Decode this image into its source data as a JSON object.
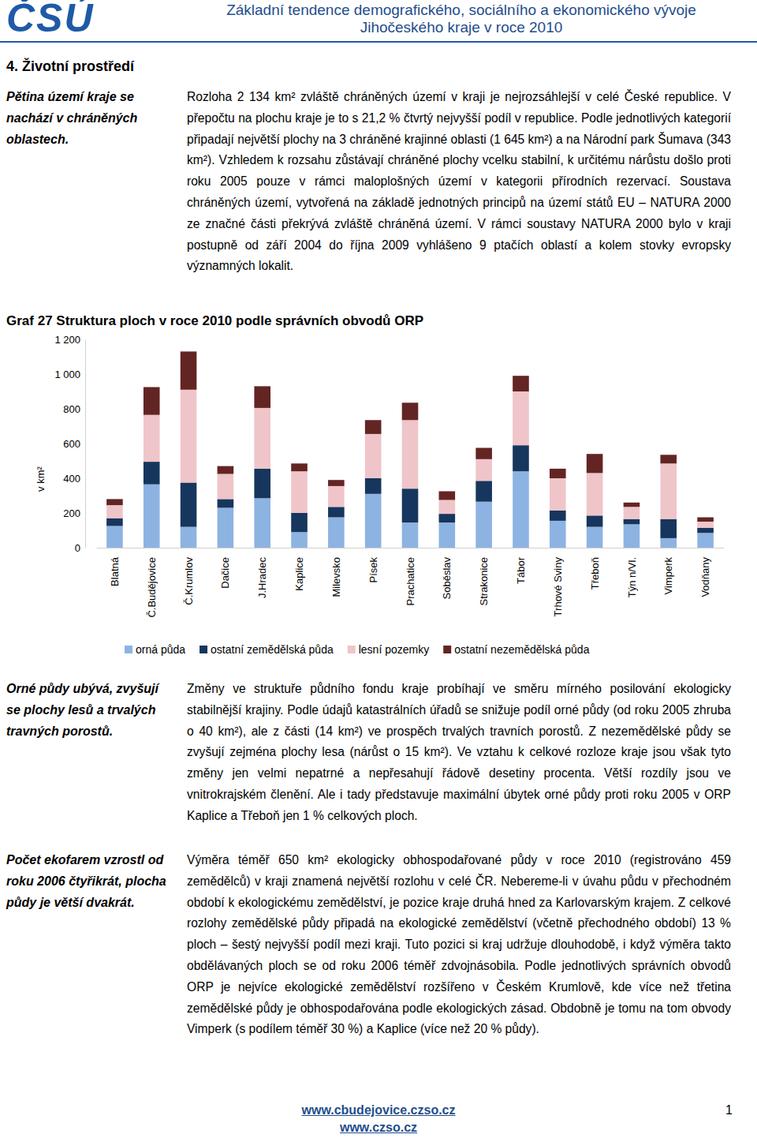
{
  "header": {
    "logo": "ČSÚ",
    "title_lines": [
      "Základní tendence demografického, sociálního a ekonomického vývoje",
      "Jihočeského kraje v roce 2010"
    ]
  },
  "section_title": "4. Životní prostředí",
  "sidebar_notes": [
    "Pětina území kraje se nachází v chráněných oblastech.",
    "Orné půdy ubývá, zvyšují se plochy lesů a trvalých travných porostů.",
    "Počet ekofarem vzrostl od roku 2006 čtyřikrát, plocha půdy je větší dvakrát."
  ],
  "paragraphs": [
    "Rozloha 2 134 km² zvláště chráněných území v kraji je nejrozsáhlejší v celé České republice. V přepočtu na plochu kraje je to s 21,2 % čtvrtý nejvyšší podíl v republice. Podle jednotlivých kategorií připadají největší plochy na 3 chráněné krajinné oblasti (1 645 km²) a na Národní park Šumava (343 km²). Vzhledem k rozsahu zůstávají chráněné plochy vcelku stabilní, k určitému nárůstu došlo proti roku 2005 pouze v rámci maloplošných území v kategorii přírodních rezervací. Soustava chráněných území, vytvořená na základě jednotných principů na území států EU – NATURA 2000 ze značné části překrývá zvláště chráněná území. V rámci soustavy NATURA 2000 bylo v kraji postupně od září 2004 do října 2009 vyhlášeno 9 ptačích oblastí a kolem stovky evropsky významných lokalit.",
    "Změny ve struktuře půdního fondu kraje probíhají ve směru mírného posilování ekologicky stabilnější krajiny. Podle údajů katastrálních úřadů se snižuje podíl orné půdy (od roku 2005 zhruba o 40 km²), ale z části (14 km²) ve prospěch trvalých travních porostů. Z nezemědělské půdy se zvyšují zejména plochy lesa (nárůst o 15 km²). Ve vztahu k celkové rozloze kraje jsou však tyto změny jen velmi nepatrné a nepřesahují řádově desetiny procenta. Větší rozdíly jsou ve vnitrokrajském členění. Ale i tady představuje maximální úbytek orné půdy proti roku 2005 v ORP Kaplice a Třeboň jen 1 % celkových ploch.",
    "Výměra téměř 650 km² ekologicky obhospodařované půdy v roce 2010 (registrováno 459 zemědělců) v kraji znamená největší rozlohu v celé ČR. Nebereme-li v úvahu půdu v přechodném období k ekologickému zemědělství, je pozice kraje druhá hned za Karlovarským krajem. Z celkové rozlohy zemědělské půdy připadá na ekologické zemědělství (včetně přechodného období) 13 % ploch – šestý nejvyšší podíl mezi kraji. Tuto pozici si kraj udržuje dlouhodobě, i když výměra takto obdělávaných ploch se od roku 2006 téměř zdvojnásobila. Podle jednotlivých správních obvodů ORP je nejvíce ekologické zemědělství rozšířeno v Českém Krumlově, kde více než třetina zemědělské půdy je obhospodařována podle ekologických zásad. Obdobně je tomu na tom obvody Vimperk (s podílem téměř 30 %) a Kaplice (více než 20 % půdy)."
  ],
  "chart_data": {
    "type": "bar",
    "stacked": true,
    "legend": "bottom",
    "title": "Graf 27 Struktura ploch v roce 2010 podle správních obvodů ORP",
    "y_label": "v km²",
    "categories": [
      "Blatná",
      "Č.Budějovice",
      "Č.Krumlov",
      "Dačice",
      "J.Hradec",
      "Kaplice",
      "Milevsko",
      "Písek",
      "Prachatice",
      "Soběslav",
      "Strakonice",
      "Tábor",
      "Trhové Sviny",
      "Třeboň",
      "Týn n/Vl.",
      "Vimperk",
      "Vodňany"
    ],
    "series": [
      {
        "name": "orná půda",
        "color": "#8db3e2",
        "values": [
          125,
          365,
          120,
          230,
          285,
          90,
          175,
          310,
          145,
          145,
          265,
          440,
          155,
          120,
          135,
          55,
          85
        ]
      },
      {
        "name": "ostatní zemědělská půda",
        "color": "#17365d",
        "values": [
          45,
          130,
          255,
          50,
          170,
          110,
          60,
          90,
          195,
          50,
          120,
          150,
          60,
          65,
          30,
          110,
          30
        ]
      },
      {
        "name": "lesní pozemky",
        "color": "#efc5c9",
        "values": [
          75,
          270,
          535,
          145,
          350,
          240,
          120,
          255,
          395,
          80,
          125,
          310,
          185,
          245,
          70,
          320,
          35
        ]
      },
      {
        "name": "ostatní nezemědělská půda",
        "color": "#632523",
        "values": [
          35,
          160,
          220,
          45,
          125,
          45,
          35,
          80,
          100,
          50,
          65,
          90,
          55,
          110,
          25,
          50,
          25
        ]
      }
    ],
    "ylim": [
      0,
      1200
    ],
    "yticks": [
      0,
      200,
      400,
      600,
      800,
      {
        "value": 1000,
        "label": "1 000"
      },
      {
        "value": 1200,
        "label": "1 200"
      }
    ]
  },
  "footer": {
    "links": [
      "www.cbudejovice.czso.cz",
      "www.czso.cz"
    ],
    "page_number": 1
  }
}
